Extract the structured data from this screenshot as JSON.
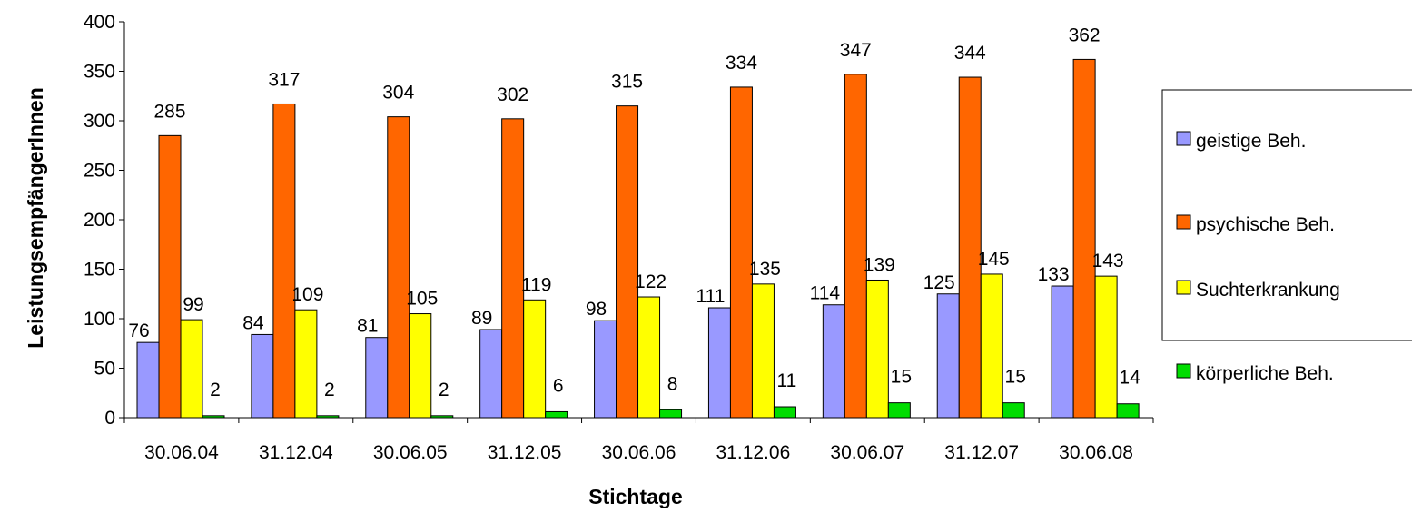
{
  "chart_data": {
    "type": "bar",
    "title": "",
    "xlabel": "Stichtage",
    "ylabel": "LeistungsempfängerInnen",
    "ylim": [
      0,
      400
    ],
    "yticks": [
      0,
      50,
      100,
      150,
      200,
      250,
      300,
      350,
      400
    ],
    "grid": false,
    "legend_position": "right",
    "categories": [
      "30.06.04",
      "31.12.04",
      "30.06.05",
      "31.12.05",
      "30.06.06",
      "31.12.06",
      "30.06.07",
      "31.12.07",
      "30.06.08"
    ],
    "series": [
      {
        "name": "geistige Beh.",
        "color": "#9999ff",
        "values": [
          76,
          84,
          81,
          89,
          98,
          111,
          114,
          125,
          133
        ]
      },
      {
        "name": "psychische Beh.",
        "color": "#ff6600",
        "values": [
          285,
          317,
          304,
          302,
          315,
          334,
          347,
          344,
          362
        ]
      },
      {
        "name": "Suchterkrankung",
        "color": "#ffff00",
        "values": [
          99,
          109,
          105,
          119,
          122,
          135,
          139,
          145,
          143
        ]
      },
      {
        "name": "körperliche Beh.",
        "color": "#00dd00",
        "values": [
          2,
          2,
          2,
          6,
          8,
          11,
          15,
          15,
          14
        ]
      }
    ]
  }
}
